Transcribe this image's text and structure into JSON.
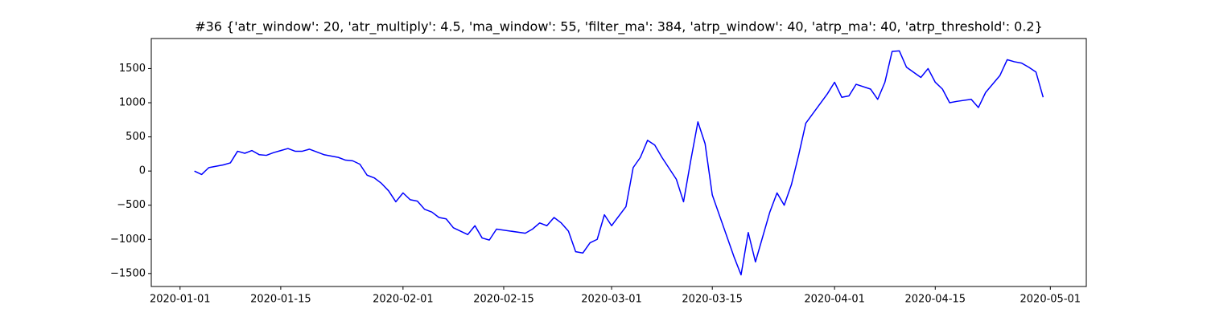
{
  "chart_data": {
    "type": "line",
    "title": "#36 {'atr_window': 20, 'atr_multiply': 4.5, 'ma_window': 55, 'filter_ma': 384, 'atrp_window': 40, 'atrp_ma': 40, 'atrp_threshold': 0.2}",
    "x": [
      "2020-01-03",
      "2020-01-04",
      "2020-01-05",
      "2020-01-07",
      "2020-01-08",
      "2020-01-09",
      "2020-01-10",
      "2020-01-11",
      "2020-01-12",
      "2020-01-13",
      "2020-01-14",
      "2020-01-15",
      "2020-01-16",
      "2020-01-17",
      "2020-01-18",
      "2020-01-19",
      "2020-01-20",
      "2020-01-21",
      "2020-01-23",
      "2020-01-24",
      "2020-01-25",
      "2020-01-26",
      "2020-01-27",
      "2020-01-28",
      "2020-01-29",
      "2020-01-30",
      "2020-01-31",
      "2020-02-01",
      "2020-02-02",
      "2020-02-03",
      "2020-02-04",
      "2020-02-05",
      "2020-02-06",
      "2020-02-07",
      "2020-02-08",
      "2020-02-10",
      "2020-02-11",
      "2020-02-12",
      "2020-02-13",
      "2020-02-14",
      "2020-02-18",
      "2020-02-19",
      "2020-02-20",
      "2020-02-21",
      "2020-02-22",
      "2020-02-23",
      "2020-02-24",
      "2020-02-25",
      "2020-02-26",
      "2020-02-27",
      "2020-02-28",
      "2020-02-29",
      "2020-03-01",
      "2020-03-03",
      "2020-03-04",
      "2020-03-05",
      "2020-03-06",
      "2020-03-07",
      "2020-03-08",
      "2020-03-10",
      "2020-03-11",
      "2020-03-12",
      "2020-03-13",
      "2020-03-14",
      "2020-03-15",
      "2020-03-18",
      "2020-03-19",
      "2020-03-20",
      "2020-03-21",
      "2020-03-23",
      "2020-03-24",
      "2020-03-25",
      "2020-03-26",
      "2020-03-27",
      "2020-03-28",
      "2020-03-31",
      "2020-04-01",
      "2020-04-02",
      "2020-04-03",
      "2020-04-04",
      "2020-04-06",
      "2020-04-07",
      "2020-04-08",
      "2020-04-09",
      "2020-04-10",
      "2020-04-11",
      "2020-04-13",
      "2020-04-14",
      "2020-04-15",
      "2020-04-16",
      "2020-04-17",
      "2020-04-18",
      "2020-04-20",
      "2020-04-21",
      "2020-04-22",
      "2020-04-24",
      "2020-04-25",
      "2020-04-26",
      "2020-04-27",
      "2020-04-28",
      "2020-04-29",
      "2020-04-30"
    ],
    "series": [
      {
        "color": "#0000ff",
        "values": [
          0,
          -50,
          50,
          90,
          120,
          290,
          260,
          300,
          240,
          230,
          270,
          300,
          330,
          290,
          290,
          320,
          280,
          240,
          200,
          160,
          150,
          100,
          -60,
          -100,
          -180,
          -290,
          -450,
          -320,
          -420,
          -440,
          -560,
          -600,
          -680,
          -700,
          -830,
          -930,
          -800,
          -980,
          -1010,
          -850,
          -910,
          -850,
          -760,
          -800,
          -680,
          -760,
          -880,
          -1180,
          -1200,
          -1050,
          -1000,
          -640,
          -800,
          -520,
          50,
          200,
          450,
          380,
          200,
          -120,
          -450,
          150,
          720,
          400,
          -350,
          -1250,
          -1520,
          -900,
          -1330,
          -600,
          -320,
          -500,
          -200,
          230,
          700,
          1130,
          1300,
          1080,
          1100,
          1270,
          1200,
          1050,
          1300,
          1750,
          1760,
          1520,
          1370,
          1500,
          1300,
          1200,
          1000,
          1020,
          1050,
          930,
          1150,
          1400,
          1630,
          1600,
          1580,
          1520,
          1450,
          1080
        ]
      }
    ],
    "xlim": [
      "2019-12-28",
      "2020-05-06"
    ],
    "xticks": [
      "2020-01-01",
      "2020-01-15",
      "2020-02-01",
      "2020-02-15",
      "2020-03-01",
      "2020-03-15",
      "2020-04-01",
      "2020-04-15",
      "2020-05-01"
    ],
    "ylim": [
      -1690,
      1940
    ],
    "yticks": [
      {
        "value": -1500,
        "label": "−1500"
      },
      {
        "value": -1000,
        "label": "−1000"
      },
      {
        "value": -500,
        "label": "−500"
      },
      0,
      500,
      1000,
      1500
    ]
  }
}
